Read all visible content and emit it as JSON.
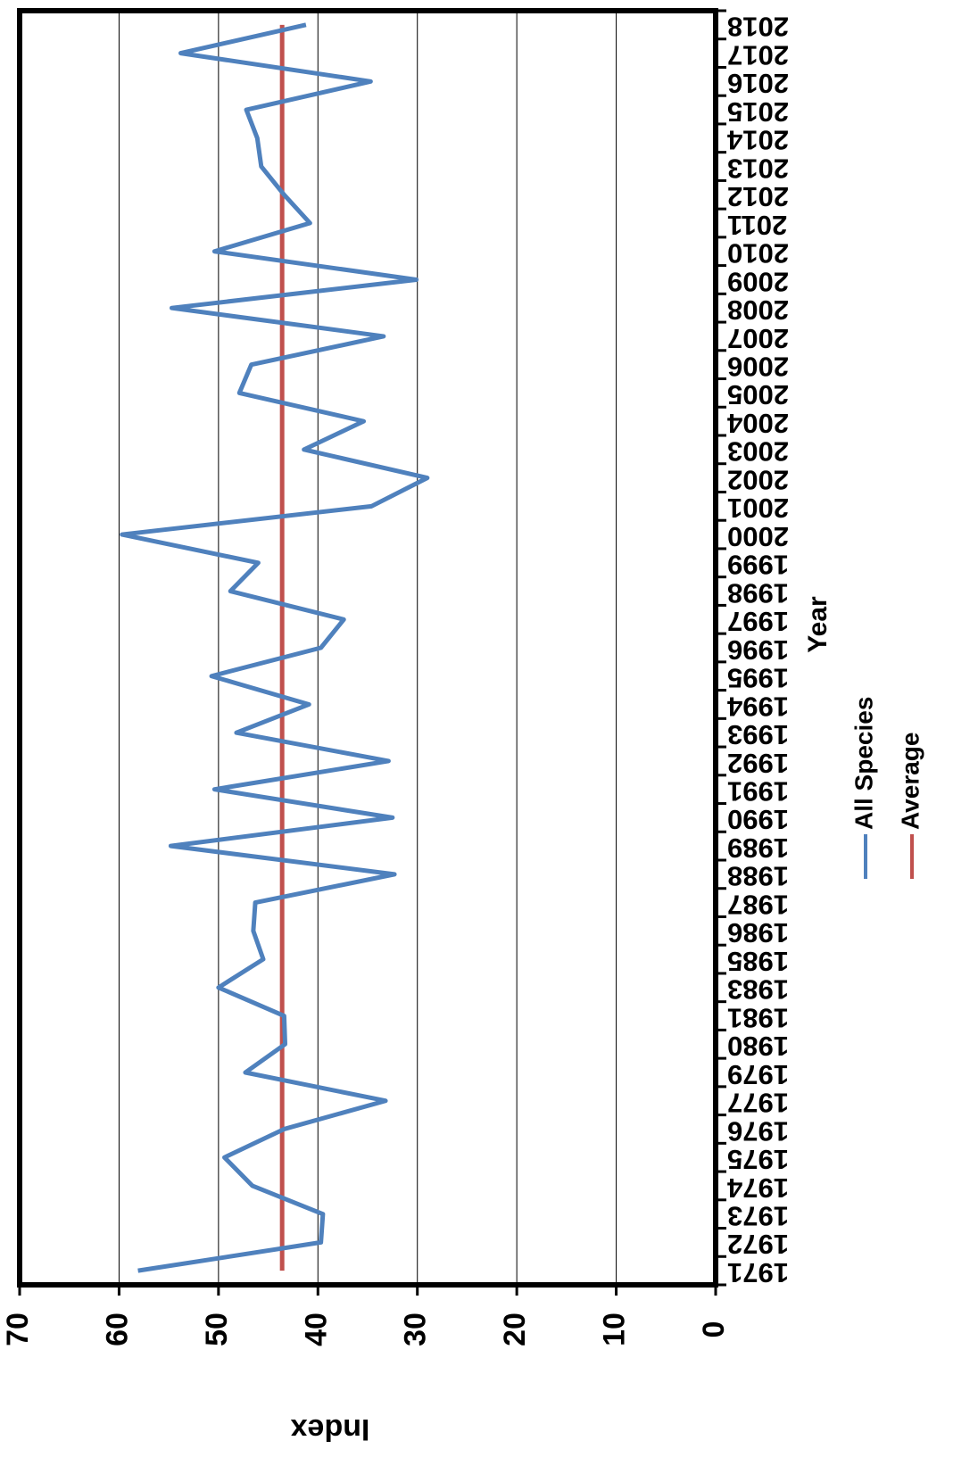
{
  "chart_data": {
    "type": "line",
    "x_label": "Year",
    "y_label": "Index",
    "categories": [
      "1971",
      "1972",
      "1973",
      "1974",
      "1975",
      "1976",
      "1977",
      "1979",
      "1980",
      "1981",
      "1983",
      "1985",
      "1986",
      "1987",
      "1988",
      "1989",
      "1990",
      "1991",
      "1992",
      "1993",
      "1994",
      "1995",
      "1996",
      "1997",
      "1998",
      "1999",
      "2000",
      "2001",
      "2002",
      "2003",
      "2004",
      "2005",
      "2006",
      "2007",
      "2008",
      "2009",
      "2010",
      "2011",
      "2012",
      "2013",
      "2014",
      "2015",
      "2016",
      "2017",
      "2018"
    ],
    "series": [
      {
        "name": "All Species",
        "color": "#4f81bd",
        "values": [
          58.1,
          39.7,
          39.5,
          46.6,
          49.4,
          43.4,
          33.2,
          47.3,
          43.3,
          43.4,
          50.0,
          45.5,
          46.5,
          46.3,
          32.3,
          54.8,
          32.5,
          50.4,
          32.9,
          48.2,
          40.9,
          50.7,
          39.7,
          37.4,
          48.8,
          46.0,
          59.7,
          34.6,
          29.0,
          41.4,
          35.4,
          47.9,
          46.7,
          33.4,
          54.7,
          30.1,
          50.4,
          40.8,
          43.4,
          45.7,
          46.1,
          47.2,
          34.7,
          53.8,
          41.2
        ]
      },
      {
        "name": "Average",
        "color": "#c0504d",
        "values": [
          43.6,
          43.6,
          43.6,
          43.6,
          43.6,
          43.6,
          43.6,
          43.6,
          43.6,
          43.6,
          43.6,
          43.6,
          43.6,
          43.6,
          43.6,
          43.6,
          43.6,
          43.6,
          43.6,
          43.6,
          43.6,
          43.6,
          43.6,
          43.6,
          43.6,
          43.6,
          43.6,
          43.6,
          43.6,
          43.6,
          43.6,
          43.6,
          43.6,
          43.6,
          43.6,
          43.6,
          43.6,
          43.6,
          43.6,
          43.6,
          43.6,
          43.6,
          43.6,
          43.6,
          43.6
        ]
      }
    ],
    "ylim": [
      0,
      70
    ],
    "yticks": [
      0,
      10,
      20,
      30,
      40,
      50,
      60,
      70
    ],
    "grid": true
  }
}
